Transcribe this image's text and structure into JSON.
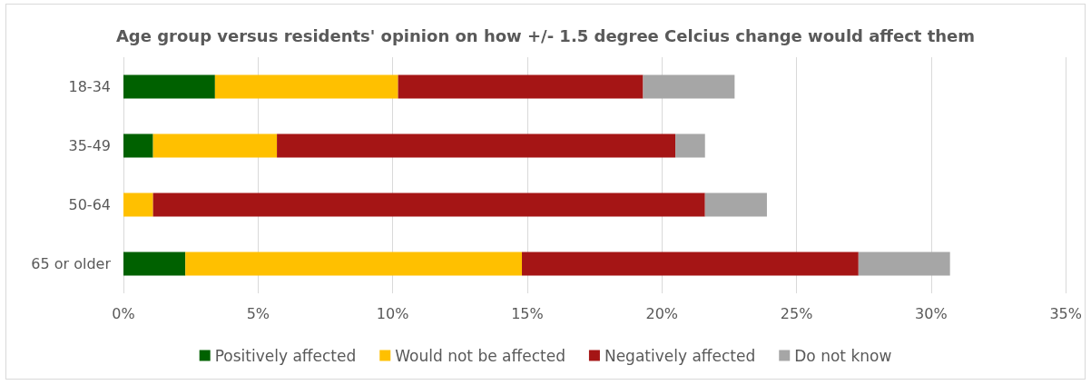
{
  "chart_data": {
    "type": "bar",
    "orientation": "horizontal",
    "stacked": true,
    "title": "Age group versus residents' opinion on how +/- 1.5 degree Celcius change would affect them",
    "categories": [
      "18-34",
      "35-49",
      "50-64",
      "65 or older"
    ],
    "series": [
      {
        "name": "Positively affected",
        "color": "#006100",
        "values": [
          3.4,
          1.1,
          0,
          2.3
        ]
      },
      {
        "name": "Would not be affected",
        "color": "#ffc000",
        "values": [
          6.8,
          4.6,
          1.1,
          12.5
        ]
      },
      {
        "name": "Negatively affected",
        "color": "#a51515",
        "values": [
          9.1,
          14.8,
          20.5,
          12.5
        ]
      },
      {
        "name": "Do not know",
        "color": "#a6a6a6",
        "values": [
          3.4,
          1.1,
          2.3,
          3.4
        ]
      }
    ],
    "xlim": [
      0,
      35
    ],
    "xticks": [
      {
        "value": 0,
        "label": "0%"
      },
      {
        "value": 5,
        "label": "5%"
      },
      {
        "value": 10,
        "label": "10%"
      },
      {
        "value": 15,
        "label": "15%"
      },
      {
        "value": 20,
        "label": "20%"
      },
      {
        "value": 25,
        "label": "25%"
      },
      {
        "value": 30,
        "label": "30%"
      },
      {
        "value": 35,
        "label": "35%"
      }
    ],
    "grid": "x",
    "legend": "bottom"
  }
}
